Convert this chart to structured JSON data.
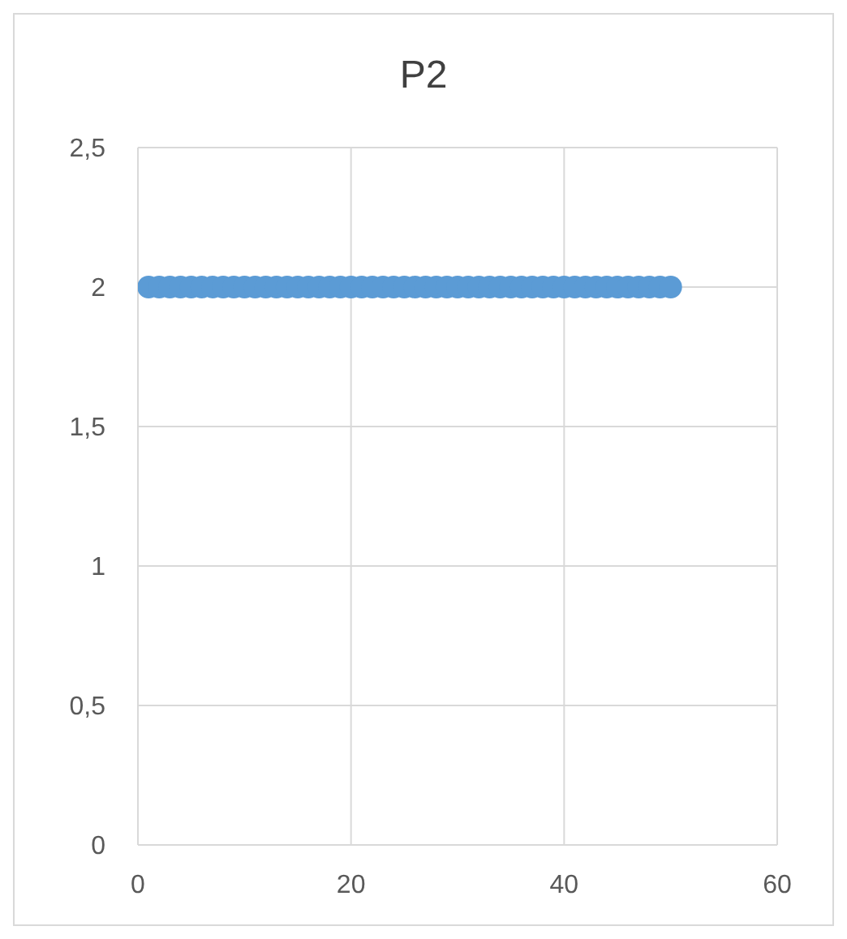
{
  "chart_data": {
    "type": "scatter",
    "title": "P2",
    "x": [
      1,
      2,
      3,
      4,
      5,
      6,
      7,
      8,
      9,
      10,
      11,
      12,
      13,
      14,
      15,
      16,
      17,
      18,
      19,
      20,
      21,
      22,
      23,
      24,
      25,
      26,
      27,
      28,
      29,
      30,
      31,
      32,
      33,
      34,
      35,
      36,
      37,
      38,
      39,
      40,
      41,
      42,
      43,
      44,
      45,
      46,
      47,
      48,
      49,
      50
    ],
    "series": [
      {
        "color": "#5b9bd5",
        "values": [
          2,
          2,
          2,
          2,
          2,
          2,
          2,
          2,
          2,
          2,
          2,
          2,
          2,
          2,
          2,
          2,
          2,
          2,
          2,
          2,
          2,
          2,
          2,
          2,
          2,
          2,
          2,
          2,
          2,
          2,
          2,
          2,
          2,
          2,
          2,
          2,
          2,
          2,
          2,
          2,
          2,
          2,
          2,
          2,
          2,
          2,
          2,
          2,
          2,
          2
        ]
      }
    ],
    "xlim": [
      0,
      60
    ],
    "xticks": [
      0,
      20,
      40,
      60
    ],
    "ylim": [
      0,
      2.5
    ],
    "yticks": [
      0,
      {
        "value": 0.5,
        "label": "0,5"
      },
      1,
      {
        "value": 1.5,
        "label": "1,5"
      },
      2,
      {
        "value": 2.5,
        "label": "2,5"
      }
    ],
    "grid": true,
    "marker": "circle"
  }
}
